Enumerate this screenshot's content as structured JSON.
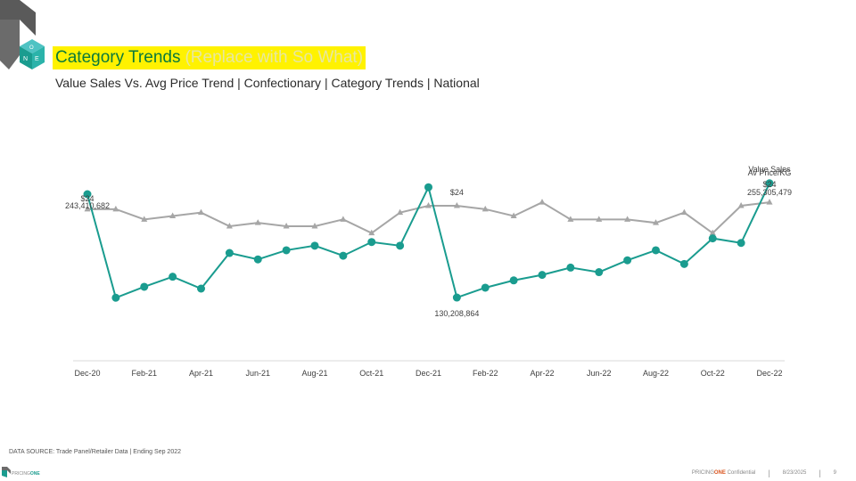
{
  "header": {
    "title": "Category Trends",
    "title_note": "(Replace with So What)",
    "subtitle": "Value Sales Vs. Avg Price Trend | Confectionary | Category Trends | National"
  },
  "footer": {
    "source": "DATA SOURCE: Trade Panel/Retailer Data | Ending Sep 2022",
    "brand_pre": "PRICING",
    "brand_post": "ONE",
    "confidential_pre": "PRICING",
    "confidential_brand": "ONE",
    "confidential_post": " Confidential",
    "date": "8/23/2025",
    "page": "9"
  },
  "colors": {
    "value_sales": "#1a9c8f",
    "avg_price": "#a6a6a6",
    "accent_orange": "#d9541e",
    "highlight": "#fff200",
    "title_green": "#0b7a3b"
  },
  "icons": [
    "pricingone-logo-icon"
  ],
  "chart_data": {
    "type": "line",
    "title": "",
    "xlabel": "",
    "ylabel": "",
    "grid": false,
    "tick_labels": [
      "Dec-20",
      "Feb-21",
      "Apr-21",
      "Jun-21",
      "Aug-21",
      "Oct-21",
      "Dec-21",
      "Feb-22",
      "Apr-22",
      "Jun-22",
      "Aug-22",
      "Oct-22",
      "Dec-22"
    ],
    "x": [
      "Dec-20",
      "Jan-21",
      "Feb-21",
      "Mar-21",
      "Apr-21",
      "May-21",
      "Jun-21",
      "Jul-21",
      "Aug-21",
      "Sep-21",
      "Oct-21",
      "Nov-21",
      "Dec-21",
      "Jan-22",
      "Feb-22",
      "Mar-22",
      "Apr-22",
      "May-22",
      "Jun-22",
      "Jul-22",
      "Aug-22",
      "Sep-22",
      "Oct-22",
      "Nov-22",
      "Dec-22"
    ],
    "series": [
      {
        "name": "Value Sales",
        "marker": "circle",
        "values": [
          243410682,
          130000000,
          142000000,
          153000000,
          140000000,
          179000000,
          172000000,
          182000000,
          187000000,
          176000000,
          191000000,
          187000000,
          251000000,
          130208864,
          141000000,
          149000000,
          155000000,
          163000000,
          158000000,
          171000000,
          182000000,
          167000000,
          195000000,
          190000000,
          255305479
        ]
      },
      {
        "name": "Av Price/KG",
        "marker": "triangle",
        "values": [
          23.7,
          23.7,
          23.4,
          23.5,
          23.6,
          23.2,
          23.3,
          23.2,
          23.2,
          23.4,
          23.0,
          23.6,
          23.8,
          23.8,
          23.7,
          23.5,
          23.9,
          23.4,
          23.4,
          23.4,
          23.3,
          23.6,
          23.0,
          23.8,
          23.9
        ]
      }
    ],
    "annotations": [
      {
        "text": "$24",
        "series": "Av Price/KG",
        "index": 0
      },
      {
        "text": "243,410,682",
        "series": "Value Sales",
        "index": 0
      },
      {
        "text": "$24",
        "series": "Av Price/KG",
        "index": 13
      },
      {
        "text": "130,208,864",
        "series": "Value Sales",
        "index": 13
      },
      {
        "text": "Av Price/KG",
        "series": "Av Price/KG",
        "index": 24
      },
      {
        "text": "$24",
        "series": "Av Price/KG",
        "index": 24
      },
      {
        "text": "Value Sales",
        "series": "Value Sales",
        "index": 24
      },
      {
        "text": "255,305,479",
        "series": "Value Sales",
        "index": 24
      }
    ]
  }
}
